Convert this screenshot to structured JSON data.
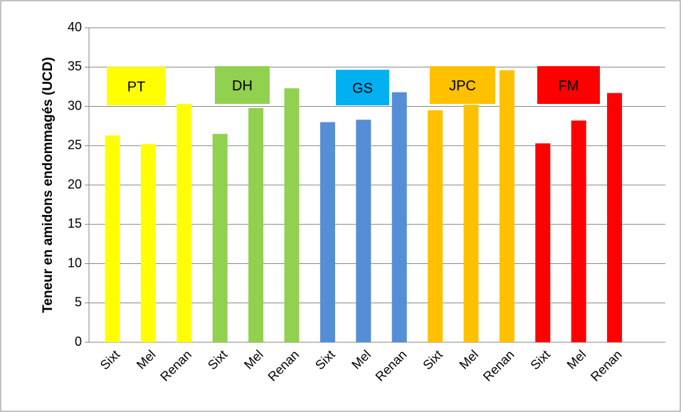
{
  "chart_data": {
    "type": "bar",
    "y_label": "Teneur en amidons endommagés (UCD)",
    "categories": [
      "Sixt",
      "Mel",
      "Renan",
      "Sixt",
      "Mel",
      "Renan",
      "Sixt",
      "Mel",
      "Renan",
      "Sixt",
      "Mel",
      "Renan",
      "Sixt",
      "Mel",
      "Renan"
    ],
    "values": [
      26.3,
      25.2,
      30.3,
      26.5,
      29.8,
      32.3,
      28.0,
      28.3,
      31.8,
      29.5,
      30.2,
      34.6,
      25.3,
      28.2,
      31.7
    ],
    "colors": [
      "#ffff00",
      "#ffff00",
      "#ffff00",
      "#92d050",
      "#92d050",
      "#92d050",
      "#558ed5",
      "#558ed5",
      "#558ed5",
      "#ffc000",
      "#ffc000",
      "#ffc000",
      "#ff0000",
      "#ff0000",
      "#ff0000"
    ],
    "annotations": [
      {
        "text": "PT",
        "color": "#ffff00"
      },
      {
        "text": "DH",
        "color": "#92d050"
      },
      {
        "text": "GS",
        "color": "#00b0f0"
      },
      {
        "text": "JPC",
        "color": "#ffc000"
      },
      {
        "text": "FM",
        "color": "#ff0000"
      }
    ],
    "ylim": [
      0,
      40
    ],
    "yticks": [
      0,
      5,
      10,
      15,
      20,
      25,
      30,
      35,
      40
    ],
    "grid": true
  }
}
